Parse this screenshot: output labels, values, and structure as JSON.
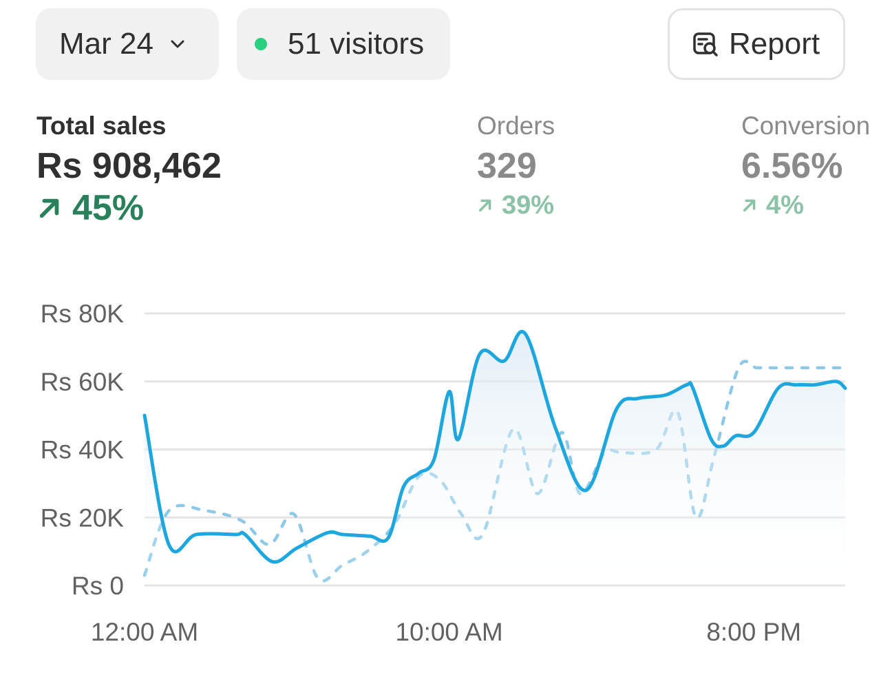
{
  "filters": {
    "date_label": "Mar 24",
    "visitors_label": "51 visitors",
    "status_color": "#29d17f",
    "report_label": "Report"
  },
  "metrics": {
    "total_sales": {
      "label": "Total sales",
      "value": "Rs 908,462",
      "change": "45%",
      "direction": "up"
    },
    "orders": {
      "label": "Orders",
      "value": "329",
      "change": "39%",
      "direction": "up"
    },
    "conversion": {
      "label": "Conversion",
      "value": "6.56%",
      "change": "4%",
      "direction": "up"
    }
  },
  "colors": {
    "positive": "#28815a",
    "positive_muted": "#8cc2a7",
    "series_current": "#1ea6de",
    "series_comparison": "#8cc9e8"
  },
  "chart_data": {
    "type": "line",
    "x_ticks": [
      "12:00 AM",
      "10:00 AM",
      "8:00 PM"
    ],
    "y_ticks": [
      "Rs 0",
      "Rs 20K",
      "Rs 40K",
      "Rs 60K",
      "Rs 80K"
    ],
    "ylim": [
      0,
      80000
    ],
    "x_unit": "hours since 12:00 AM",
    "xlim": [
      0,
      23
    ],
    "grid": true,
    "series": [
      {
        "style": "solid",
        "area_fill": true,
        "x": [
          0,
          0.8,
          1.7,
          3,
          3.3,
          4.2,
          5,
          6,
          6.5,
          7.4,
          8,
          8.5,
          9,
          9.5,
          10,
          10.3,
          11,
          11.8,
          12.5,
          13.5,
          14.5,
          15.5,
          16.2,
          17.1,
          17.8,
          18,
          18.6,
          19,
          19.4,
          20,
          20.8,
          21.4,
          22,
          22.7,
          23
        ],
        "y": [
          50000,
          12000,
          15000,
          15000,
          15000,
          7000,
          11000,
          15500,
          15000,
          14500,
          14000,
          29000,
          33000,
          37000,
          57000,
          43000,
          68000,
          66000,
          74000,
          46000,
          28000,
          52000,
          55000,
          56000,
          59000,
          58000,
          43000,
          41000,
          44000,
          45000,
          58000,
          59000,
          59000,
          60000,
          58000
        ],
        "values": [
          50000,
          12000,
          15000,
          15000,
          15000,
          7000,
          11000,
          15500,
          15000,
          14500,
          14000,
          29000,
          33000,
          37000,
          57000,
          43000,
          68000,
          66000,
          74000,
          46000,
          28000,
          52000,
          55000,
          56000,
          59000,
          58000,
          43000,
          41000,
          44000,
          45000,
          58000,
          59000,
          59000,
          60000,
          58000
        ]
      },
      {
        "style": "dashed",
        "x": [
          0,
          0.8,
          2,
          3.2,
          4.1,
          4.9,
          5.7,
          6.5,
          7.3,
          8.2,
          9,
          9.7,
          10.4,
          11.1,
          12.1,
          12.9,
          13.7,
          14.3,
          15.1,
          15.7,
          16.8,
          17.5,
          18.1,
          18.7,
          19.5,
          20.1,
          20.7,
          21.5,
          22.2,
          23
        ],
        "y": [
          3000,
          22000,
          22000,
          19000,
          12000,
          21000,
          2000,
          6000,
          10000,
          18000,
          32000,
          31000,
          21000,
          15000,
          46000,
          27000,
          45000,
          27000,
          39000,
          39000,
          40000,
          51000,
          20000,
          38000,
          64000,
          64000,
          64000,
          64000,
          64000,
          64000
        ]
      }
    ]
  }
}
